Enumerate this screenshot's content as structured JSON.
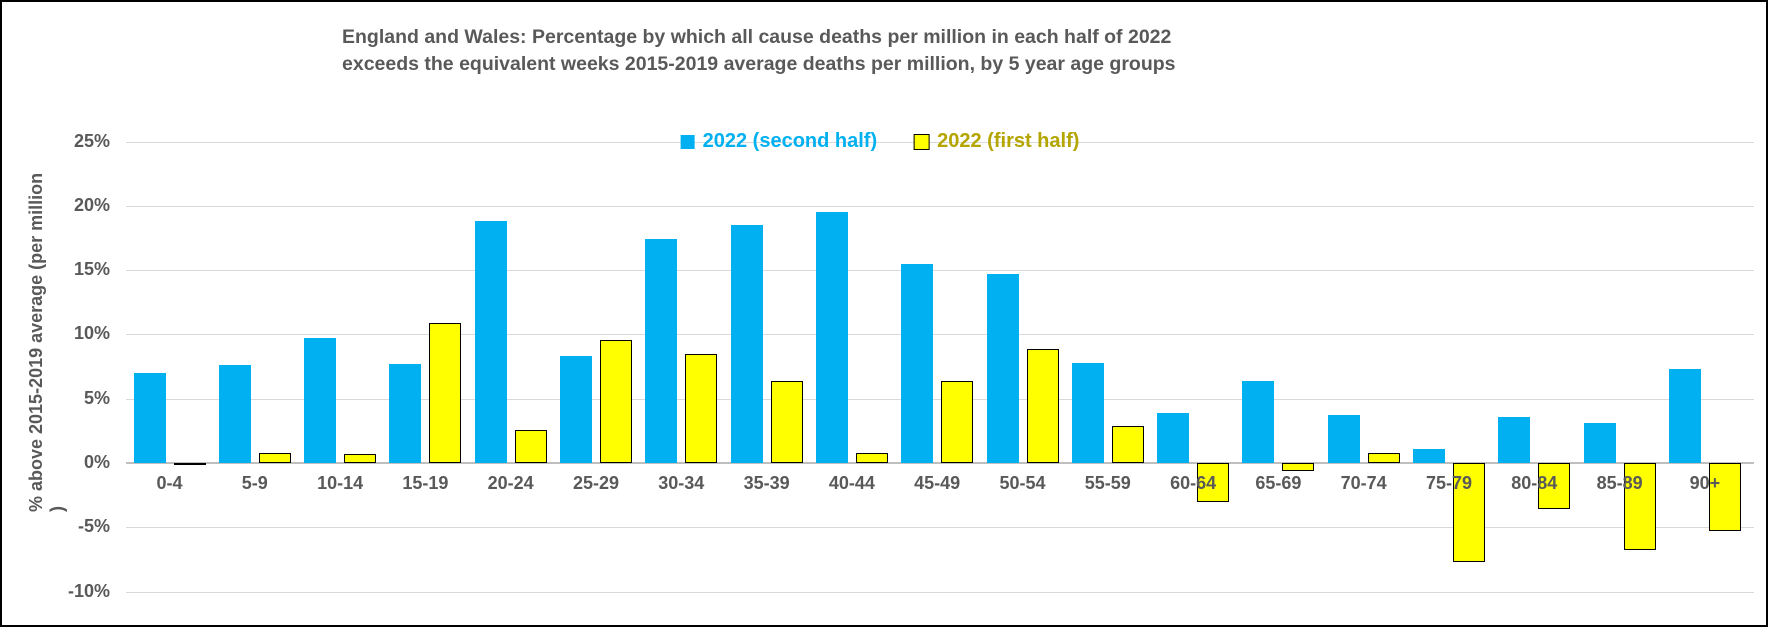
{
  "title_lines": [
    "England and Wales: Percentage by which all cause deaths per million  in each half of 2022",
    "exceeds the equivalent weeks 2015-2019 average deaths per million, by 5 year age groups"
  ],
  "chart_data": {
    "type": "bar",
    "title": "England and Wales: Percentage by which all cause deaths per million in each half of 2022 exceeds the equivalent weeks 2015-2019 average deaths per million, by 5 year age groups",
    "xlabel": "",
    "ylabel": "% above 2015-2019 average (per million )",
    "ylim": [
      -10,
      25
    ],
    "grid": true,
    "legend_position": "top-center",
    "categories": [
      "0-4",
      "5-9",
      "10-14",
      "15-19",
      "20-24",
      "25-29",
      "30-34",
      "35-39",
      "40-44",
      "45-49",
      "50-54",
      "55-59",
      "60-64",
      "65-69",
      "70-74",
      "75-79",
      "80-84",
      "85-89",
      "90+"
    ],
    "series": [
      {
        "name": "2022 (second half)",
        "color": "#00B0F0",
        "border_color": null,
        "label_color": "#00B0F0",
        "values": [
          7.0,
          7.6,
          9.7,
          7.7,
          18.8,
          8.3,
          17.4,
          18.5,
          19.5,
          15.5,
          14.7,
          7.8,
          3.9,
          6.4,
          3.7,
          1.1,
          3.6,
          3.1,
          7.3
        ]
      },
      {
        "name": "2022 (first half)",
        "color": "#FFFF00",
        "border_color": "#000000",
        "label_color": "#B4A500",
        "values": [
          -0.1,
          0.8,
          0.7,
          10.9,
          2.6,
          9.6,
          8.5,
          6.4,
          0.8,
          6.4,
          8.9,
          2.9,
          -3.0,
          -0.6,
          0.8,
          -7.7,
          -3.6,
          -6.8,
          -5.3
        ]
      }
    ],
    "y_ticks": [
      {
        "value": 25,
        "label": "25%"
      },
      {
        "value": 20,
        "label": "20%"
      },
      {
        "value": 15,
        "label": "15%"
      },
      {
        "value": 10,
        "label": "10%"
      },
      {
        "value": 5,
        "label": "5%"
      },
      {
        "value": 0,
        "label": "0%"
      },
      {
        "value": -5,
        "label": "-5%"
      },
      {
        "value": -10,
        "label": "-10%"
      }
    ]
  },
  "colors": {
    "title_text": "#595959",
    "axis_text": "#595959",
    "gridline": "#D9D9D9",
    "zero_line": "#BFBFBF",
    "background": "#FFFFFF",
    "frame_border": "#000000"
  }
}
